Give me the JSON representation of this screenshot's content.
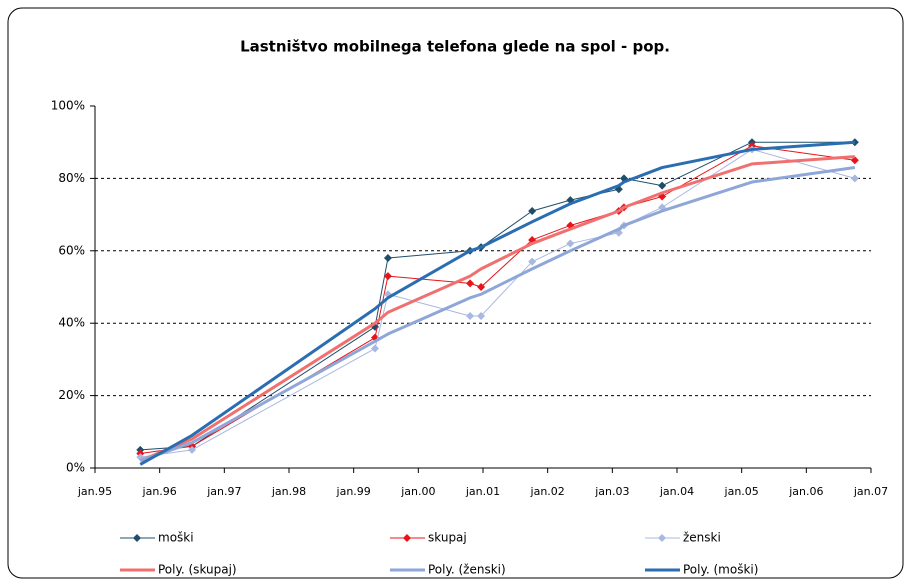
{
  "chart_data": {
    "type": "line",
    "title": "Lastništvo mobilnega telefona glede na spol - pop.",
    "x": [
      1995.7,
      1996.5,
      1999.33,
      1999.53,
      2000.8,
      2000.97,
      2001.76,
      2002.35,
      2003.1,
      2003.18,
      2003.77,
      2005.16,
      2006.75
    ],
    "xlim": [
      1995,
      2007
    ],
    "xticks": [
      {
        "value": 1995,
        "label": "jan.95"
      },
      {
        "value": 1996,
        "label": "jan.96"
      },
      {
        "value": 1997,
        "label": "jan.97"
      },
      {
        "value": 1998,
        "label": "jan.98"
      },
      {
        "value": 1999,
        "label": "jan.99"
      },
      {
        "value": 2000,
        "label": "jan.00"
      },
      {
        "value": 2001,
        "label": "jan.01"
      },
      {
        "value": 2002,
        "label": "jan.02"
      },
      {
        "value": 2003,
        "label": "jan.03"
      },
      {
        "value": 2004,
        "label": "jan.04"
      },
      {
        "value": 2005,
        "label": "jan.05"
      },
      {
        "value": 2006,
        "label": "jan.06"
      },
      {
        "value": 2007,
        "label": "jan.07"
      }
    ],
    "ylim": [
      0,
      100
    ],
    "yticks": [
      {
        "value": 0,
        "label": "0%"
      },
      {
        "value": 20,
        "label": "20%"
      },
      {
        "value": 40,
        "label": "40%"
      },
      {
        "value": 60,
        "label": "60%"
      },
      {
        "value": 80,
        "label": "80%"
      },
      {
        "value": 100,
        "label": "100%"
      }
    ],
    "grid": true,
    "series": [
      {
        "name": "moški",
        "color": "#1f4e6b",
        "marker": true,
        "values": [
          5,
          6,
          39,
          58,
          60,
          61,
          71,
          74,
          77,
          80,
          78,
          90,
          90
        ]
      },
      {
        "name": "skupaj",
        "color": "#e8141a",
        "marker": true,
        "values": [
          4,
          6,
          36,
          53,
          51,
          50,
          63,
          67,
          71,
          72,
          75,
          89,
          85
        ]
      },
      {
        "name": "ženski",
        "color": "#a8b8e0",
        "marker": true,
        "values": [
          3,
          5,
          33,
          48,
          42,
          42,
          57,
          62,
          65,
          67,
          72,
          88,
          80
        ]
      },
      {
        "name": "Poly. (skupaj)",
        "color": "#f07070",
        "marker": false,
        "values": [
          2,
          8,
          40,
          43,
          53,
          55,
          62,
          66,
          71,
          72,
          76,
          84,
          86
        ]
      },
      {
        "name": "Poly. (ženski)",
        "color": "#8ea6d8",
        "marker": false,
        "values": [
          2,
          7,
          35,
          37,
          47,
          48,
          55,
          60,
          66,
          67,
          71,
          79,
          83
        ]
      },
      {
        "name": "Poly. (moški)",
        "color": "#2a6db0",
        "marker": false,
        "values": [
          1,
          9,
          44,
          47,
          60,
          61,
          68,
          73,
          78,
          79,
          83,
          88,
          90
        ]
      }
    ]
  }
}
